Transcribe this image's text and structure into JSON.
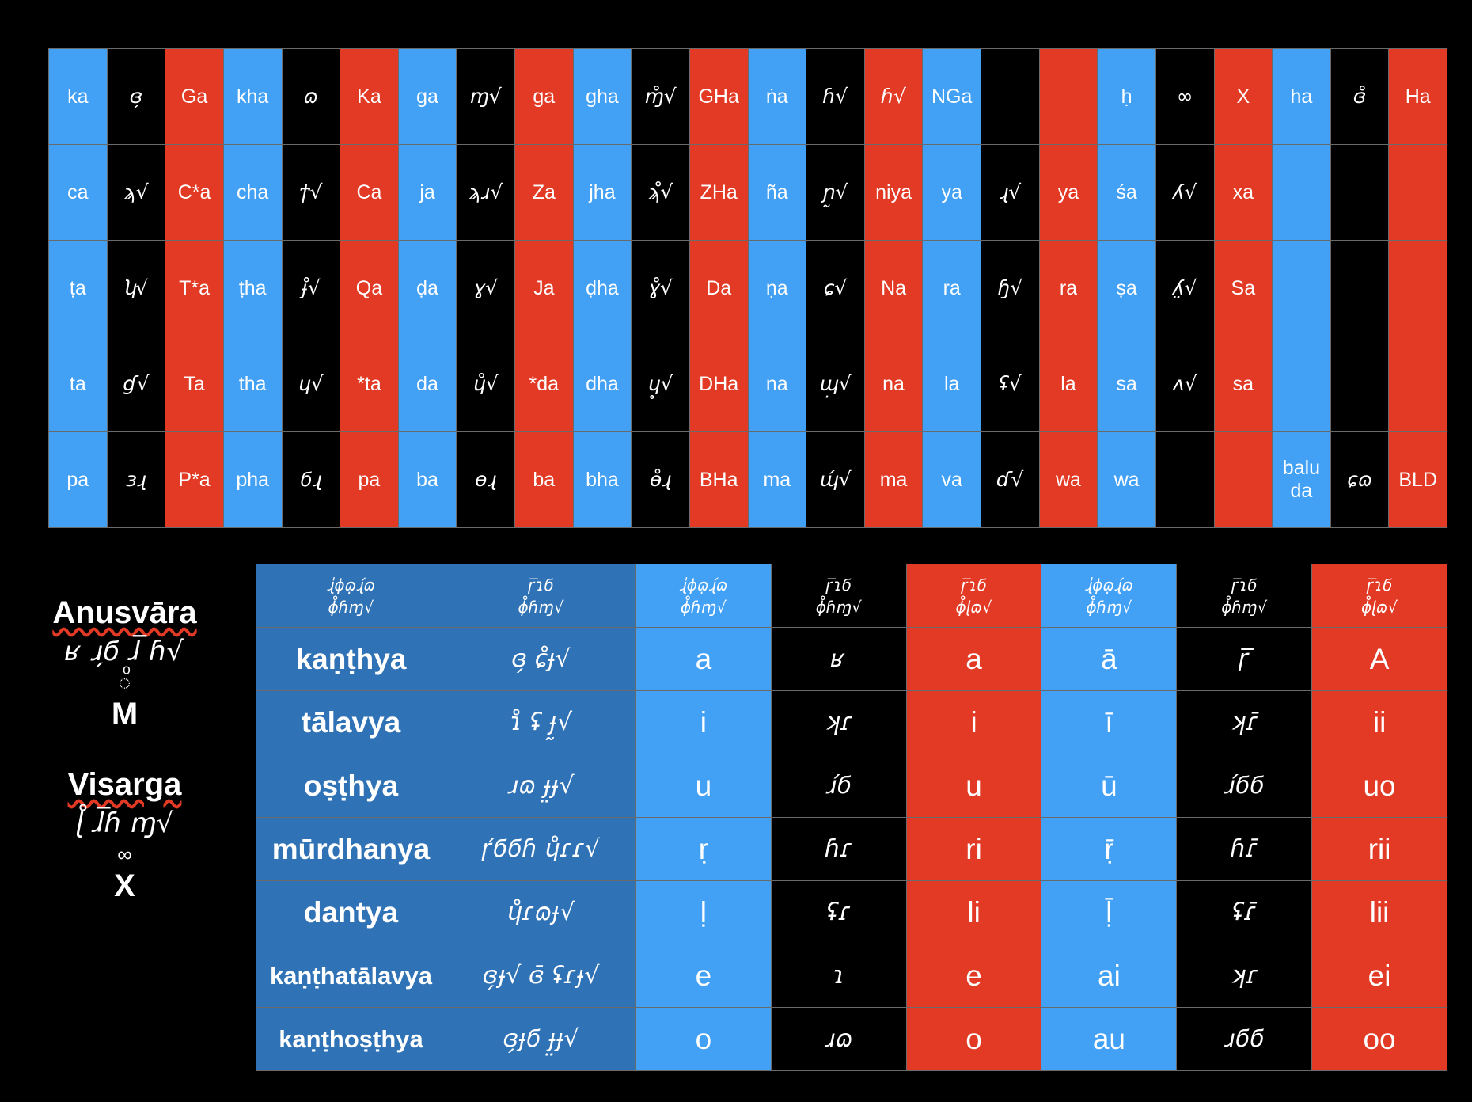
{
  "colors": {
    "blue": "#42a0f5",
    "black": "#000000",
    "red": "#e23a24",
    "dark_blue": "#2f72b5"
  },
  "consonant_grid": {
    "rows": [
      [
        {
          "t": "ka",
          "c": "b"
        },
        {
          "t": "ɞ̗",
          "c": "k",
          "g": 1
        },
        {
          "t": "Ga",
          "c": "r"
        },
        {
          "t": "kha",
          "c": "b"
        },
        {
          "t": "ɷ",
          "c": "k",
          "g": 1
        },
        {
          "t": "Ka",
          "c": "r"
        },
        {
          "t": "ga",
          "c": "b"
        },
        {
          "t": "ɱ√",
          "c": "k",
          "g": 1
        },
        {
          "t": "ga",
          "c": "r"
        },
        {
          "t": "gha",
          "c": "b"
        },
        {
          "t": "ɱ̊√",
          "c": "k",
          "g": 1
        },
        {
          "t": "GHa",
          "c": "r"
        },
        {
          "t": "ṅa",
          "c": "b"
        },
        {
          "t": "ɦ√",
          "c": "k",
          "g": 1
        },
        {
          "t": "ɦ√",
          "c": "r",
          "g": 1
        },
        {
          "t": "NGa",
          "c": "b"
        },
        {
          "t": "",
          "c": "k"
        },
        {
          "t": "",
          "c": "r"
        },
        {
          "t": "ḥ",
          "c": "b"
        },
        {
          "t": "∞",
          "c": "k",
          "g": 1
        },
        {
          "t": "X",
          "c": "r"
        },
        {
          "t": "ha",
          "c": "b"
        },
        {
          "t": "ɞ̊",
          "c": "k",
          "g": 1
        },
        {
          "t": "Ha",
          "c": "r"
        }
      ],
      [
        {
          "t": "ca",
          "c": "b"
        },
        {
          "t": "ϡ√",
          "c": "k",
          "g": 1
        },
        {
          "t": "C*a",
          "c": "r"
        },
        {
          "t": "cha",
          "c": "b"
        },
        {
          "t": "ϯ√",
          "c": "k",
          "g": 1
        },
        {
          "t": "Ca",
          "c": "r"
        },
        {
          "t": "ja",
          "c": "b"
        },
        {
          "t": "ϡɹ√",
          "c": "k",
          "g": 1
        },
        {
          "t": "Za",
          "c": "r"
        },
        {
          "t": "jha",
          "c": "b"
        },
        {
          "t": "ϡ̊√",
          "c": "k",
          "g": 1
        },
        {
          "t": "ZHa",
          "c": "r"
        },
        {
          "t": "ña",
          "c": "b"
        },
        {
          "t": "ɲ̰√",
          "c": "k",
          "g": 1
        },
        {
          "t": "niya",
          "c": "r"
        },
        {
          "t": "ya",
          "c": "b"
        },
        {
          "t": "ɻ√",
          "c": "k",
          "g": 1
        },
        {
          "t": "ya",
          "c": "r"
        },
        {
          "t": "śa",
          "c": "b"
        },
        {
          "t": "ʎ√",
          "c": "k",
          "g": 1
        },
        {
          "t": "xa",
          "c": "r"
        },
        {
          "t": "",
          "c": "b"
        },
        {
          "t": "",
          "c": "k"
        },
        {
          "t": "",
          "c": "r"
        }
      ],
      [
        {
          "t": "ṭa",
          "c": "b"
        },
        {
          "t": "ʮ√",
          "c": "k",
          "g": 1
        },
        {
          "t": "T*a",
          "c": "r"
        },
        {
          "t": "ṭha",
          "c": "b"
        },
        {
          "t": "ɟ̊√",
          "c": "k",
          "g": 1
        },
        {
          "t": "Qa",
          "c": "r"
        },
        {
          "t": "ḍa",
          "c": "b"
        },
        {
          "t": "ɣ√",
          "c": "k",
          "g": 1
        },
        {
          "t": "Ja",
          "c": "r"
        },
        {
          "t": "ḍha",
          "c": "b"
        },
        {
          "t": "ɣ̊√",
          "c": "k",
          "g": 1
        },
        {
          "t": "Da",
          "c": "r"
        },
        {
          "t": "ṇa",
          "c": "b"
        },
        {
          "t": "ɕ√",
          "c": "k",
          "g": 1
        },
        {
          "t": "Na",
          "c": "r"
        },
        {
          "t": "ra",
          "c": "b"
        },
        {
          "t": "ɧ√",
          "c": "k",
          "g": 1
        },
        {
          "t": "ra",
          "c": "r"
        },
        {
          "t": "ṣa",
          "c": "b"
        },
        {
          "t": "ʎ̤√",
          "c": "k",
          "g": 1
        },
        {
          "t": "Sa",
          "c": "r"
        },
        {
          "t": "",
          "c": "b"
        },
        {
          "t": "",
          "c": "k"
        },
        {
          "t": "",
          "c": "r"
        }
      ],
      [
        {
          "t": "ta",
          "c": "b"
        },
        {
          "t": "ɠ√",
          "c": "k",
          "g": 1
        },
        {
          "t": "Ta",
          "c": "r"
        },
        {
          "t": "tha",
          "c": "b"
        },
        {
          "t": "ɥ√",
          "c": "k",
          "g": 1
        },
        {
          "t": "*ta",
          "c": "r"
        },
        {
          "t": "da",
          "c": "b"
        },
        {
          "t": "ɥ̊√",
          "c": "k",
          "g": 1
        },
        {
          "t": "*da",
          "c": "r"
        },
        {
          "t": "dha",
          "c": "b"
        },
        {
          "t": "ɥ̥√",
          "c": "k",
          "g": 1
        },
        {
          "t": "DHa",
          "c": "r"
        },
        {
          "t": "na",
          "c": "b"
        },
        {
          "t": "ɰ̣√",
          "c": "k",
          "g": 1
        },
        {
          "t": "na",
          "c": "r"
        },
        {
          "t": "la",
          "c": "b"
        },
        {
          "t": "ʢ√",
          "c": "k",
          "g": 1
        },
        {
          "t": "la",
          "c": "r"
        },
        {
          "t": "sa",
          "c": "b"
        },
        {
          "t": "ʌ√",
          "c": "k",
          "g": 1
        },
        {
          "t": "sa",
          "c": "r"
        },
        {
          "t": "",
          "c": "b"
        },
        {
          "t": "",
          "c": "k"
        },
        {
          "t": "",
          "c": "r"
        }
      ],
      [
        {
          "t": "pa",
          "c": "b"
        },
        {
          "t": "ɜɻ",
          "c": "k",
          "g": 1
        },
        {
          "t": "P*a",
          "c": "r"
        },
        {
          "t": "pha",
          "c": "b"
        },
        {
          "t": "ϭɻ",
          "c": "k",
          "g": 1
        },
        {
          "t": "pa",
          "c": "r"
        },
        {
          "t": "ba",
          "c": "b"
        },
        {
          "t": "ɵɻ",
          "c": "k",
          "g": 1
        },
        {
          "t": "ba",
          "c": "r"
        },
        {
          "t": "bha",
          "c": "b"
        },
        {
          "t": "ɵ̊ɻ",
          "c": "k",
          "g": 1
        },
        {
          "t": "BHa",
          "c": "r"
        },
        {
          "t": "ma",
          "c": "b"
        },
        {
          "t": "ɰ́√",
          "c": "k",
          "g": 1
        },
        {
          "t": "ma",
          "c": "r"
        },
        {
          "t": "va",
          "c": "b"
        },
        {
          "t": "ɗ√",
          "c": "k",
          "g": 1
        },
        {
          "t": "wa",
          "c": "r"
        },
        {
          "t": "wa",
          "c": "b"
        },
        {
          "t": "",
          "c": "k"
        },
        {
          "t": "",
          "c": "r"
        },
        {
          "t": "balu\nda",
          "c": "b"
        },
        {
          "t": "ɕɷ",
          "c": "k",
          "g": 1
        },
        {
          "t": "BLD",
          "c": "r"
        }
      ]
    ]
  },
  "left_panel": {
    "anusvara": {
      "title": "Anusvāra",
      "script": "ʁ ɹ̗ϭ ɺ̅ ɦ√",
      "mark": "◌ͦ",
      "latin": "M"
    },
    "visarga": {
      "title": "Visarga",
      "script": "ɭ̊ ɺ̅ɦ ɱ√",
      "mark": "∞",
      "latin": "X"
    }
  },
  "vowel_table": {
    "headers": [
      {
        "text": "ɻ̍ɸɷ̣ɻ́ɷ\nɸ̊ɦɱ√",
        "c": "d"
      },
      {
        "text": "ɼ̅ɿϭ\nɸ̊ɦɱ√",
        "c": "d"
      },
      {
        "text": "ɻ̍ɸɷ̣ɻ́ɷ\nɸ̊ɦɱ√",
        "c": "b"
      },
      {
        "text": "ɼ̅ɿϭ\nɸ̊ɦɱ√",
        "c": "k"
      },
      {
        "text": "ɼ̅ɿϭ\nɸ̊ɭɷ√",
        "c": "r"
      },
      {
        "text": "ɻ̍ɸɷ̣ɻ́ɷ\nɸ̊ɦɱ√",
        "c": "b"
      },
      {
        "text": "ɼ̅ɿϭ\nɸ̊ɦɱ√",
        "c": "k"
      },
      {
        "text": "ɼ̅ɿϭ\nɸ̊ɭɷ√",
        "c": "r"
      }
    ],
    "rows": [
      {
        "term": "kaṇṭhya",
        "script": "ɞ̗ ɕ̊ɟ√",
        "v1": "a",
        "s1": "ʁ",
        "l1": "a",
        "v2": "ā",
        "s2": "ɼ̅",
        "l2": "A"
      },
      {
        "term": "tālavya",
        "script": "ɿ̊ ʢ ɟ̰√",
        "v1": "i",
        "s1": "ʞɾ",
        "l1": "i",
        "v2": "ī",
        "s2": "ʞɾ̄",
        "l2": "ii"
      },
      {
        "term": "oṣṭhya",
        "script": "ɹɷ ɟ̤ɟ√",
        "v1": "u",
        "s1": "ɹ́ϭ",
        "l1": "u",
        "v2": "ū",
        "s2": "ɹ́ϭϭ",
        "l2": "uo"
      },
      {
        "term": "mūrdhanya",
        "script": "ɼ́ϭϭɦ ɥ̊ɾɾ√",
        "v1": "ṛ",
        "s1": "ɦɾ",
        "l1": "ri",
        "v2": "ṝ",
        "s2": "ɦɾ̄",
        "l2": "rii"
      },
      {
        "term": "dantya",
        "script": "ɥ̊ɾɷɟ√",
        "v1": "ḷ",
        "s1": "ʢɾ",
        "l1": "li",
        "v2": "ḹ",
        "s2": "ʢɾ̄",
        "l2": "lii"
      },
      {
        "term": "kaṇṭhatālavya",
        "script": "ɞ̗ɟ√ ɞ̄ ʢɾɟ√",
        "v1": "e",
        "s1": "ɿ",
        "l1": "e",
        "v2": "ai",
        "s2": "ʞɾ",
        "l2": "ei"
      },
      {
        "term": "kaṇṭhoṣṭhya",
        "script": "ɞ̗ɟϭ ɟ̤ɟ√",
        "v1": "o",
        "s1": "ɹɷ",
        "l1": "o",
        "v2": "au",
        "s2": "ɹϭϭ",
        "l2": "oo"
      }
    ]
  }
}
